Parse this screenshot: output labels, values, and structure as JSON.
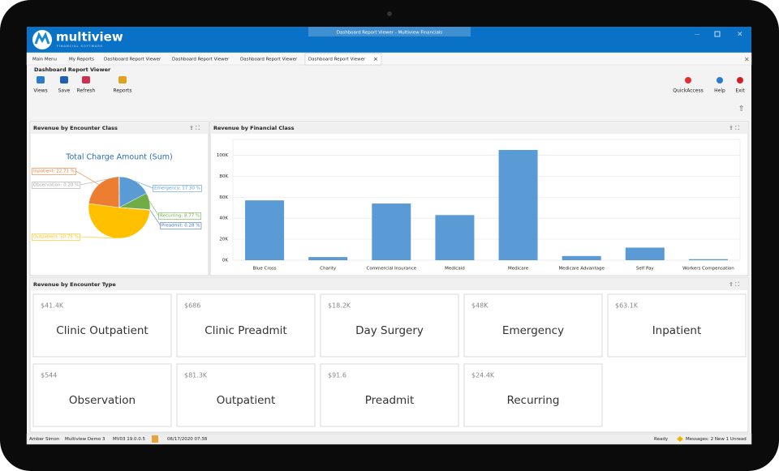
{
  "window": {
    "title": "Dashboard Report Viewer - Multiview Financials",
    "logo": "multiview",
    "logo_sub": "FINANCIAL SOFTWARE"
  },
  "tabs": [
    "Main Menu",
    "My Reports",
    "Dashboard Report Viewer",
    "Dashboard Report Viewer",
    "Dashboard Report Viewer",
    "Dashboard Report Viewer"
  ],
  "ribbon": {
    "group": "Dashboard Report Viewer",
    "left_buttons": [
      "Views",
      "Save",
      "Refresh",
      "Reports"
    ],
    "right_buttons": [
      "QuickAccess",
      "Help",
      "Exit"
    ]
  },
  "chart_data": [
    {
      "type": "pie",
      "title": "Revenue by Encounter Class",
      "subtitle": "Total Charge Amount (Sum)",
      "categories": [
        "Emergency",
        "Recurring",
        "Preadmit",
        "Outpatient",
        "Inpatient",
        "Observation"
      ],
      "values": [
        17.3,
        8.77,
        0.28,
        50.75,
        22.71,
        0.2
      ],
      "value_labels": [
        "Emergency: 17.30 %",
        "Recurring: 8.77 %",
        "Preadmit: 0.28 %",
        "Outpatient: 50.75 %",
        "Inpatient: 22.71 %",
        "Observation: 0.20 %"
      ],
      "colors": [
        "#5b9bd5",
        "#70ad47",
        "#4472c4",
        "#ffc000",
        "#ed7d31",
        "#a5a5a5"
      ]
    },
    {
      "type": "bar",
      "title": "Revenue by Financial Class",
      "categories": [
        "Blue Cross",
        "Charity",
        "Commercial Insurance",
        "Medicaid",
        "Medicare",
        "Medicare Advantage",
        "Self Pay",
        "Workers Compensation"
      ],
      "values": [
        57000,
        3000,
        54000,
        43000,
        105000,
        4000,
        12000,
        1000
      ],
      "color": "#5b9bd5",
      "ylim": [
        0,
        115000
      ],
      "yticks": [
        {
          "value": 0,
          "label": "0K"
        },
        {
          "value": 20000,
          "label": "20K"
        },
        {
          "value": 40000,
          "label": "40K"
        },
        {
          "value": 60000,
          "label": "60K"
        },
        {
          "value": 80000,
          "label": "80K"
        },
        {
          "value": 100000,
          "label": "100K"
        }
      ],
      "grid": true
    }
  ],
  "cards": {
    "title": "Revenue by Encounter Type",
    "items": [
      {
        "value": "$41.4K",
        "name": "Clinic Outpatient"
      },
      {
        "value": "$686",
        "name": "Clinic Preadmit"
      },
      {
        "value": "$18.2K",
        "name": "Day Surgery"
      },
      {
        "value": "$48K",
        "name": "Emergency"
      },
      {
        "value": "$63.1K",
        "name": "Inpatient"
      },
      {
        "value": "$544",
        "name": "Observation"
      },
      {
        "value": "$81.3K",
        "name": "Outpatient"
      },
      {
        "value": "$91.6",
        "name": "Preadmit"
      },
      {
        "value": "$24.4K",
        "name": "Recurring"
      }
    ]
  },
  "status": {
    "left": [
      "Amber Simon",
      "Multiview Demo 3",
      "MV03 19.0.0.5",
      "06/17/2020 07:38"
    ],
    "ready": "Ready",
    "messages": "Messages: 2 New 1 Unread"
  }
}
